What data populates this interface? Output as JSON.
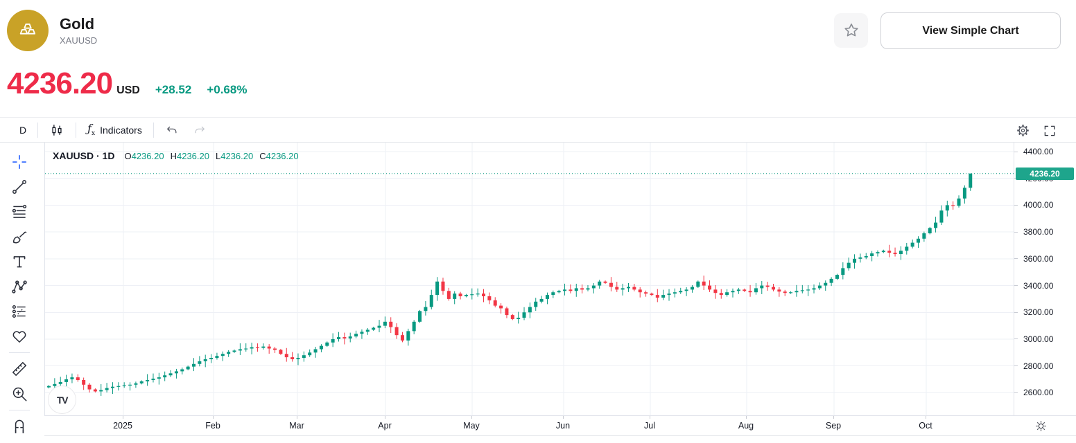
{
  "header": {
    "symbol_name": "Gold",
    "symbol_code": "XAUUSD",
    "view_simple_chart_label": "View Simple Chart"
  },
  "quote": {
    "price": "4236.20",
    "currency": "USD",
    "change": "+28.52",
    "change_percent": "+0.68%",
    "price_color": "#ee2b49",
    "change_color": "#089981"
  },
  "toolbar": {
    "interval_label": "D",
    "indicators_label": "Indicators"
  },
  "legend": {
    "title": "XAUUSD · 1D",
    "ohlc": [
      {
        "key": "O",
        "value": "4236.20"
      },
      {
        "key": "H",
        "value": "4236.20"
      },
      {
        "key": "L",
        "value": "4236.20"
      },
      {
        "key": "C",
        "value": "4236.20"
      }
    ]
  },
  "watermark": "TV",
  "sidebar_tools": [
    {
      "name": "crosshair",
      "active": true
    },
    {
      "name": "trend-line",
      "active": false
    },
    {
      "name": "fib-retracement",
      "active": false
    },
    {
      "name": "brush",
      "active": false
    },
    {
      "name": "text",
      "active": false
    },
    {
      "name": "xabcd-pattern",
      "active": false
    },
    {
      "name": "forecast",
      "active": false
    },
    {
      "name": "emoji",
      "active": false
    },
    {
      "name": "ruler",
      "active": false
    },
    {
      "name": "zoom-in",
      "active": false
    },
    {
      "name": "magnet",
      "active": false
    }
  ],
  "axes": {
    "y_labels": [
      "4400.00",
      "4200.00",
      "4000.00",
      "3800.00",
      "3600.00",
      "3400.00",
      "3200.00",
      "3000.00",
      "2800.00",
      "2600.00"
    ],
    "x_labels": [
      "2025",
      "Feb",
      "Mar",
      "Apr",
      "May",
      "Jun",
      "Jul",
      "Aug",
      "Sep",
      "Oct"
    ],
    "price_badge": "4236.20"
  },
  "chart_data": {
    "type": "candlestick",
    "title": "XAUUSD 1D candlestick chart",
    "symbol": "XAUUSD",
    "interval": "1D",
    "x_range": [
      "Dec 2024",
      "mid Oct 2025"
    ],
    "ylim": [
      2500,
      4450
    ],
    "grid_levels": [
      4400,
      4200,
      4000,
      3800,
      3600,
      3400,
      3200,
      3000,
      2800,
      2600
    ],
    "current_price": 4236.2,
    "colors": {
      "up": "#089981",
      "down": "#f23645",
      "price_line": "#089981",
      "badge": "#1ea58c"
    },
    "first_open": 2640,
    "closes": [
      2650,
      2665,
      2680,
      2700,
      2715,
      2695,
      2660,
      2625,
      2610,
      2620,
      2635,
      2645,
      2650,
      2655,
      2660,
      2670,
      2685,
      2695,
      2705,
      2715,
      2730,
      2745,
      2760,
      2775,
      2795,
      2815,
      2835,
      2850,
      2860,
      2875,
      2890,
      2905,
      2915,
      2925,
      2930,
      2940,
      2935,
      2945,
      2930,
      2920,
      2890,
      2865,
      2850,
      2860,
      2880,
      2900,
      2925,
      2950,
      2975,
      3000,
      3015,
      3005,
      3020,
      3040,
      3055,
      3070,
      3085,
      3100,
      3130,
      3090,
      3030,
      2990,
      3060,
      3130,
      3210,
      3240,
      3330,
      3430,
      3360,
      3300,
      3340,
      3320,
      3330,
      3335,
      3340,
      3320,
      3290,
      3250,
      3230,
      3180,
      3150,
      3160,
      3200,
      3240,
      3280,
      3300,
      3330,
      3350,
      3360,
      3370,
      3360,
      3380,
      3370,
      3380,
      3400,
      3430,
      3420,
      3390,
      3370,
      3380,
      3390,
      3370,
      3350,
      3340,
      3330,
      3310,
      3330,
      3340,
      3350,
      3360,
      3370,
      3390,
      3430,
      3400,
      3370,
      3345,
      3330,
      3350,
      3360,
      3370,
      3360,
      3350,
      3380,
      3400,
      3390,
      3370,
      3355,
      3345,
      3350,
      3360,
      3365,
      3370,
      3380,
      3400,
      3420,
      3450,
      3480,
      3530,
      3570,
      3600,
      3610,
      3620,
      3640,
      3650,
      3660,
      3645,
      3635,
      3660,
      3690,
      3720,
      3750,
      3790,
      3830,
      3870,
      3960,
      4000,
      3995,
      4050,
      4130,
      4236.2
    ]
  }
}
